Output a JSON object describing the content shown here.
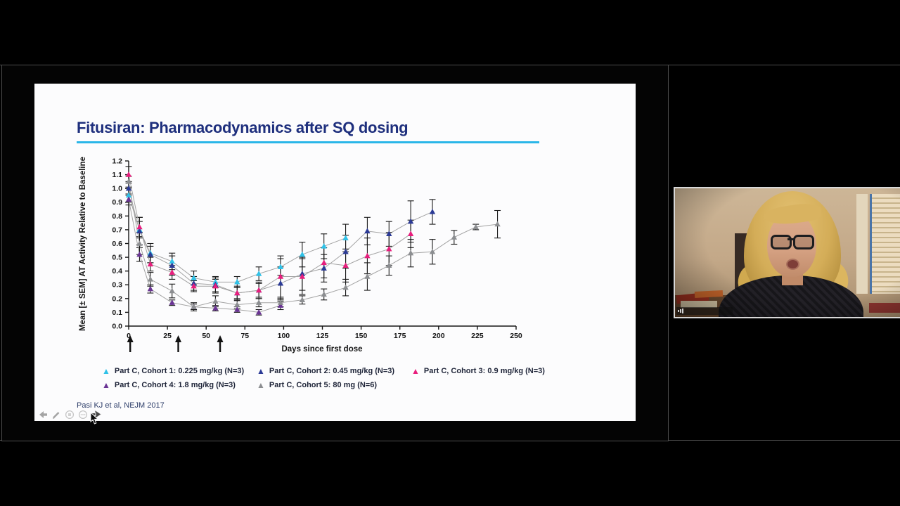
{
  "presentation": {
    "slide": {
      "title": "Fitusiran: Pharmacodynamics after SQ dosing",
      "title_color": "#1e2f7d",
      "underline_color": "#2ab6e8",
      "citation": "Pasi KJ et al, NEJM 2017"
    },
    "toolbar": {
      "icons": [
        "previous-slide-arrow",
        "pen",
        "laser-pointer",
        "more-options",
        "next-slide-arrow"
      ]
    }
  },
  "webcam": {
    "has_text": false
  },
  "chart_data": {
    "type": "line",
    "title": "Fitusiran: Pharmacodynamics after SQ dosing",
    "xlabel": "Days since first dose",
    "ylabel": "Mean [± SEM] AT Activity Relative to Baseline",
    "xlim": [
      0,
      250
    ],
    "ylim": [
      0.0,
      1.2
    ],
    "x_ticks": [
      0,
      25,
      50,
      75,
      100,
      125,
      150,
      175,
      200,
      225,
      250
    ],
    "y_ticks": [
      0.0,
      0.1,
      0.2,
      0.3,
      0.4,
      0.5,
      0.6,
      0.7,
      0.8,
      0.9,
      1.0,
      1.1,
      1.2
    ],
    "grid": false,
    "legend_position": "bottom",
    "error_bars": "SEM",
    "dose_arrow_days": [
      1,
      32,
      59
    ],
    "series": [
      {
        "name": "Part C, Cohort 1: 0.225 mg/kg (N=3)",
        "color": "#30c2e8",
        "x": [
          0,
          7,
          14,
          28,
          42,
          56,
          70,
          84,
          98,
          112,
          126,
          140
        ],
        "y": [
          0.95,
          0.7,
          0.53,
          0.47,
          0.35,
          0.32,
          0.32,
          0.38,
          0.43,
          0.52,
          0.58,
          0.64
        ],
        "sem": [
          0.05,
          0.06,
          0.07,
          0.06,
          0.05,
          0.04,
          0.04,
          0.05,
          0.06,
          0.09,
          0.09,
          0.1
        ]
      },
      {
        "name": "Part C, Cohort 2: 0.45 mg/kg (N=3)",
        "color": "#2b3a96",
        "x": [
          0,
          7,
          14,
          28,
          42,
          56,
          70,
          84,
          98,
          112,
          126,
          140,
          154,
          168,
          182,
          196
        ],
        "y": [
          1.0,
          0.69,
          0.52,
          0.44,
          0.31,
          0.3,
          0.24,
          0.26,
          0.31,
          0.38,
          0.42,
          0.54,
          0.69,
          0.67,
          0.76,
          0.83
        ],
        "sem": [
          0.05,
          0.1,
          0.06,
          0.07,
          0.05,
          0.05,
          0.04,
          0.05,
          0.12,
          0.12,
          0.1,
          0.12,
          0.1,
          0.09,
          0.15,
          0.09
        ]
      },
      {
        "name": "Part C, Cohort 3: 0.9 mg/kg (N=3)",
        "color": "#e81e7d",
        "x": [
          0,
          7,
          14,
          28,
          42,
          56,
          70,
          84,
          98,
          112,
          126,
          140,
          154,
          168,
          182
        ],
        "y": [
          1.1,
          0.72,
          0.45,
          0.39,
          0.29,
          0.29,
          0.24,
          0.26,
          0.36,
          0.36,
          0.46,
          0.44,
          0.51,
          0.56,
          0.67
        ],
        "sem": [
          0.06,
          0.07,
          0.05,
          0.05,
          0.04,
          0.05,
          0.05,
          0.06,
          0.15,
          0.13,
          0.11,
          0.12,
          0.13,
          0.12,
          0.1
        ]
      },
      {
        "name": "Part C, Cohort 4: 1.8 mg/kg (N=3)",
        "color": "#6a3494",
        "x": [
          0,
          7,
          14,
          28,
          42,
          56,
          70,
          84,
          98
        ],
        "y": [
          0.92,
          0.52,
          0.27,
          0.17,
          0.14,
          0.13,
          0.12,
          0.1,
          0.15
        ],
        "sem": [
          0.04,
          0.05,
          0.03,
          0.02,
          0.02,
          0.02,
          0.02,
          0.02,
          0.03
        ]
      },
      {
        "name": "Part C, Cohort 5: 80 mg (N=6)",
        "color": "#8c8e91",
        "x": [
          0,
          7,
          14,
          28,
          42,
          56,
          70,
          84,
          98,
          112,
          126,
          140,
          154,
          168,
          182,
          196,
          210,
          224,
          238
        ],
        "y": [
          1.05,
          0.6,
          0.34,
          0.255,
          0.14,
          0.18,
          0.155,
          0.17,
          0.17,
          0.19,
          0.23,
          0.28,
          0.36,
          0.44,
          0.53,
          0.54,
          0.645,
          0.72,
          0.74
        ],
        "sem": [
          0.04,
          0.08,
          0.05,
          0.05,
          0.03,
          0.04,
          0.03,
          0.03,
          0.03,
          0.03,
          0.04,
          0.06,
          0.1,
          0.07,
          0.1,
          0.09,
          0.05,
          0.02,
          0.1
        ]
      }
    ]
  }
}
